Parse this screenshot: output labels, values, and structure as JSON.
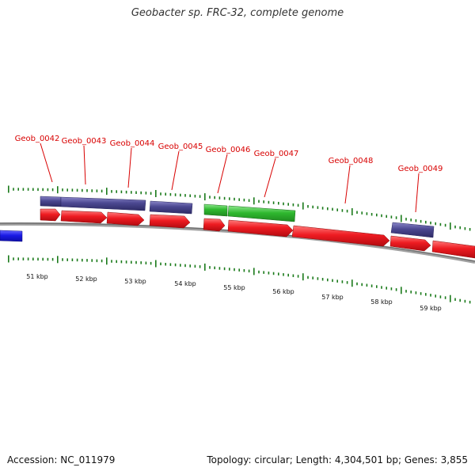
{
  "title": "Geobacter sp. FRC-32, complete genome",
  "footer": {
    "accession": "Accession: NC_011979",
    "summary": "Topology: circular; Length: 4,304,501 bp; Genes: 3,855"
  },
  "colors": {
    "forward_cds": "#e8151b",
    "reverse_cds": "#4a4790",
    "green_gene": "#2fb82f",
    "blue_gene": "#1a1ae6",
    "label": "#d80000",
    "tick": "#1a7a1a",
    "backbone": "#808080"
  },
  "gene_labels": [
    "Geob_0042",
    "Geob_0043",
    "Geob_0044",
    "Geob_0045",
    "Geob_0046",
    "Geob_0047",
    "Geob_0048",
    "Geob_0049"
  ],
  "scale_labels": [
    "51 kbp",
    "52 kbp",
    "53 kbp",
    "54 kbp",
    "55 kbp",
    "56 kbp",
    "57 kbp",
    "58 kbp",
    "59 kbp"
  ]
}
